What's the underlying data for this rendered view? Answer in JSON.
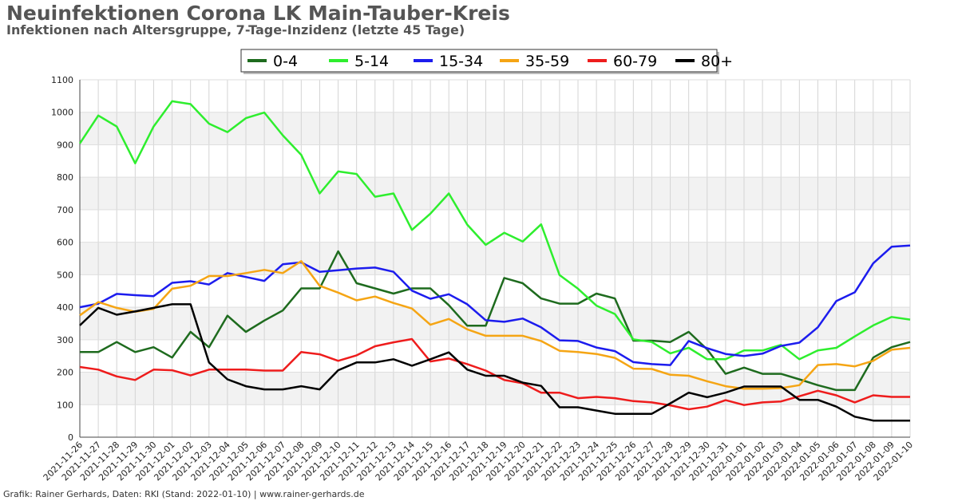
{
  "title": "Neuinfektionen Corona LK Main-Tauber-Kreis",
  "subtitle": "Infektionen nach Altersgruppe, 7-Tage-Inzidenz (letzte 45 Tage)",
  "footer": "Grafik: Rainer Gerhards, Daten: RKI (Stand: 2022-01-10) | www.rainer-gerhards.de",
  "chart_data": {
    "type": "line",
    "title": "Neuinfektionen Corona LK Main-Tauber-Kreis",
    "subtitle": "Infektionen nach Altersgruppe, 7-Tage-Inzidenz (letzte 45 Tage)",
    "xlabel": "",
    "ylabel": "",
    "ylim": [
      0,
      1100
    ],
    "yticks": [
      0,
      100,
      200,
      300,
      400,
      500,
      600,
      700,
      800,
      900,
      1000,
      1100
    ],
    "grid": true,
    "legend_position": "top-center",
    "categories": [
      "2021-11-26",
      "2021-11-27",
      "2021-11-28",
      "2021-11-29",
      "2021-11-30",
      "2021-12-01",
      "2021-12-02",
      "2021-12-03",
      "2021-12-04",
      "2021-12-05",
      "2021-12-06",
      "2021-12-07",
      "2021-12-08",
      "2021-12-09",
      "2021-12-10",
      "2021-12-11",
      "2021-12-12",
      "2021-12-13",
      "2021-12-14",
      "2021-12-15",
      "2021-12-16",
      "2021-12-17",
      "2021-12-18",
      "2021-12-19",
      "2021-12-20",
      "2021-12-21",
      "2021-12-22",
      "2021-12-23",
      "2021-12-24",
      "2021-12-25",
      "2021-12-26",
      "2021-12-27",
      "2021-12-28",
      "2021-12-29",
      "2021-12-30",
      "2021-12-31",
      "2022-01-01",
      "2022-01-02",
      "2022-01-03",
      "2022-01-04",
      "2022-01-05",
      "2022-01-06",
      "2022-01-07",
      "2022-01-08",
      "2022-01-09",
      "2022-01-10"
    ],
    "series": [
      {
        "name": "0-4",
        "color": "#1e6b1e",
        "values": [
          262,
          262,
          293,
          262,
          277,
          245,
          324,
          277,
          374,
          324,
          359,
          390,
          458,
          458,
          572,
          474,
          458,
          442,
          458,
          458,
          406,
          343,
          343,
          490,
          474,
          427,
          411,
          411,
          442,
          427,
          297,
          297,
          293,
          324,
          270,
          195,
          214,
          195,
          195,
          178,
          160,
          145,
          145,
          245,
          277,
          293
        ]
      },
      {
        "name": "5-14",
        "color": "#2eee2e",
        "values": [
          904,
          990,
          956,
          843,
          956,
          1034,
          1025,
          965,
          939,
          982,
          999,
          929,
          869,
          750,
          818,
          810,
          740,
          750,
          638,
          688,
          750,
          654,
          592,
          629,
          602,
          655,
          499,
          457,
          405,
          379,
          301,
          293,
          258,
          275,
          240,
          240,
          267,
          267,
          284,
          240,
          267,
          275,
          310,
          344,
          370,
          362
        ]
      },
      {
        "name": "15-34",
        "color": "#1c1cee",
        "values": [
          400,
          411,
          441,
          437,
          434,
          475,
          480,
          470,
          505,
          493,
          481,
          532,
          538,
          509,
          514,
          519,
          522,
          509,
          451,
          426,
          440,
          409,
          360,
          355,
          365,
          338,
          298,
          296,
          276,
          265,
          231,
          225,
          222,
          296,
          274,
          256,
          250,
          257,
          281,
          291,
          338,
          419,
          446,
          535,
          586,
          590
        ]
      },
      {
        "name": "35-59",
        "color": "#f5a514",
        "values": [
          375,
          416,
          398,
          386,
          395,
          457,
          466,
          496,
          496,
          505,
          515,
          505,
          542,
          466,
          445,
          421,
          433,
          413,
          396,
          346,
          364,
          332,
          312,
          312,
          312,
          296,
          266,
          262,
          256,
          244,
          211,
          210,
          192,
          189,
          172,
          157,
          149,
          149,
          151,
          160,
          222,
          225,
          218,
          235,
          269,
          275
        ]
      },
      {
        "name": "60-79",
        "color": "#ee1c1c",
        "values": [
          216,
          208,
          187,
          176,
          208,
          206,
          190,
          208,
          208,
          208,
          205,
          205,
          262,
          255,
          235,
          252,
          280,
          292,
          302,
          233,
          242,
          225,
          205,
          176,
          166,
          137,
          137,
          120,
          124,
          120,
          111,
          107,
          98,
          86,
          94,
          114,
          99,
          107,
          110,
          126,
          143,
          129,
          107,
          129,
          124,
          124
        ]
      },
      {
        "name": "80+",
        "color": "#000000",
        "values": [
          344,
          398,
          377,
          387,
          398,
          409,
          409,
          230,
          178,
          157,
          147,
          147,
          157,
          147,
          206,
          230,
          230,
          240,
          220,
          240,
          261,
          208,
          189,
          189,
          168,
          158,
          92,
          92,
          82,
          72,
          72,
          72,
          104,
          137,
          123,
          137,
          156,
          156,
          156,
          115,
          115,
          94,
          63,
          51,
          51,
          51
        ]
      }
    ]
  }
}
